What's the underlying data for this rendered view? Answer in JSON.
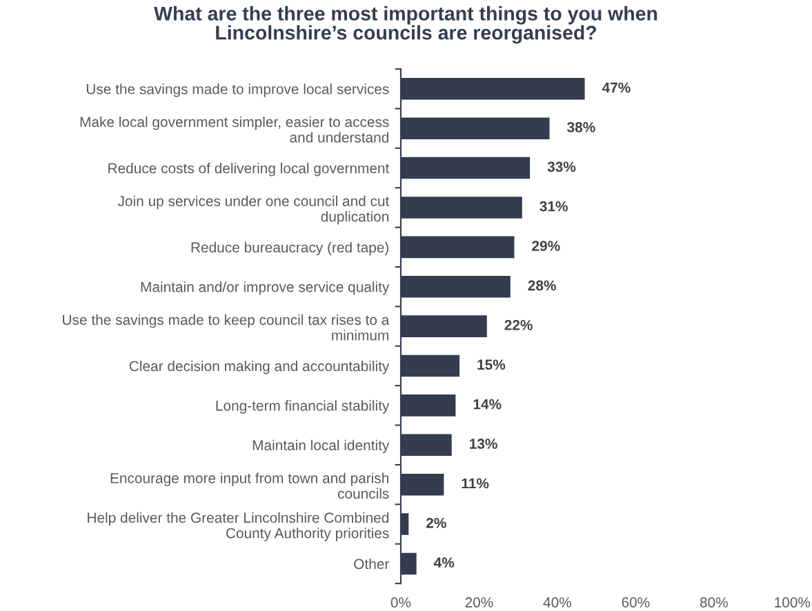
{
  "chart_data": {
    "type": "bar",
    "orientation": "horizontal",
    "title": "What are the three most important things to you when\nLincolnshire’s councils are reorganised?",
    "categories": [
      "Use the savings made to improve local services",
      "Make local government simpler, easier to access\nand understand",
      "Reduce costs of delivering local government",
      "Join up services under one council and cut\nduplication",
      "Reduce bureaucracy (red tape)",
      "Maintain and/or improve service quality",
      "Use the savings made to keep council tax rises to a\nminimum",
      "Clear decision making and accountability",
      "Long-term financial stability",
      "Maintain local identity",
      "Encourage more input from town and parish\ncouncils",
      "Help deliver the Greater Lincolnshire Combined\nCounty Authority priorities",
      "Other"
    ],
    "values": [
      47,
      38,
      33,
      31,
      29,
      28,
      22,
      15,
      14,
      13,
      11,
      2,
      4
    ],
    "value_labels": [
      "47%",
      "38%",
      "33%",
      "31%",
      "29%",
      "28%",
      "22%",
      "15%",
      "14%",
      "13%",
      "11%",
      "2%",
      "4%"
    ],
    "color": "#333d4f",
    "xlim": [
      0,
      100
    ],
    "xticks": [
      {
        "value": 0,
        "label": "0%"
      },
      {
        "value": 20,
        "label": "20%"
      },
      {
        "value": 40,
        "label": "40%"
      },
      {
        "value": 60,
        "label": "60%"
      },
      {
        "value": 80,
        "label": "80%"
      },
      {
        "value": 100,
        "label": "100%"
      }
    ],
    "grid": false,
    "legend": false
  }
}
